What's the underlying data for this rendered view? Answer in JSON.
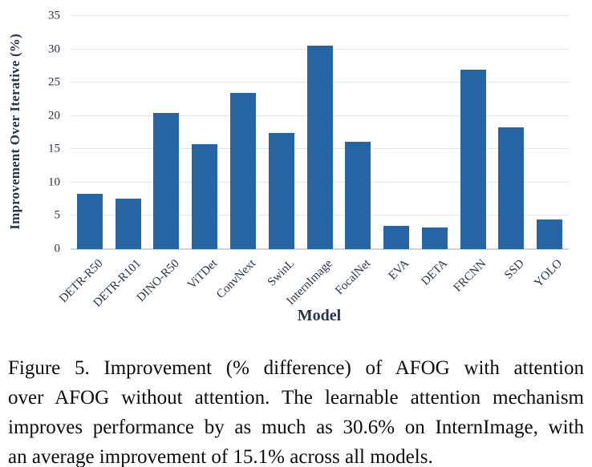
{
  "chart_data": {
    "type": "bar",
    "categories": [
      "DETR-R50",
      "DETR-R101",
      "DINO-R50",
      "ViTDet",
      "ConvNext",
      "SwinL",
      "InternImage",
      "FocalNet",
      "EVA",
      "DETA",
      "FRCNN",
      "SSD",
      "YOLO"
    ],
    "values": [
      8.3,
      7.6,
      20.4,
      15.8,
      23.4,
      17.4,
      30.6,
      16.1,
      3.5,
      3.2,
      27.0,
      18.3,
      4.5
    ],
    "title": "",
    "xlabel": "Model",
    "ylabel": "Improvement Over Iterative (%)",
    "ylim": [
      0,
      35
    ],
    "yticks": [
      0,
      5,
      10,
      15,
      20,
      25,
      30,
      35
    ],
    "grid": true,
    "legend": "none",
    "colors": {
      "bar": "#2565a4",
      "gridline": "#dde6f2",
      "baseline": "#d2d2d2",
      "axis_text": "#26344f"
    }
  },
  "caption": {
    "text": "Figure 5. Improvement (% difference) of AFOG with attention over AFOG without attention. The learnable attention mechanism improves performance by as much as 30.6% on InternImage, with an average improvement of 15.1% across all models.",
    "lines": [
      "Figure 5. Improvement (% difference) of AFOG with attention",
      "over AFOG without attention. The learnable attention mechanism",
      "improves performance by as much as 30.6% on InternImage, with",
      "an average improvement of 15.1% across all models."
    ]
  }
}
